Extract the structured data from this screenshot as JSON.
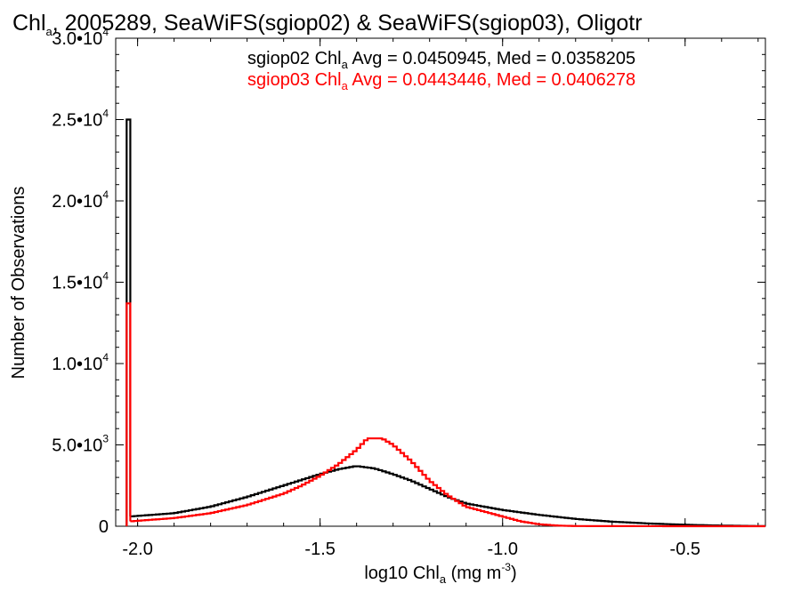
{
  "title": {
    "pre": "Chl",
    "sub": "a",
    "post": ", 2005289, SeaWiFS(sgiop02) & SeaWiFS(sgiop03), Oligotr"
  },
  "legend": [
    {
      "pre": "sgiop02 Chl",
      "sub": "a",
      "post": " Avg = 0.0450945, Med = 0.0358205",
      "color": "#000000"
    },
    {
      "pre": "sgiop03 Chl",
      "sub": "a",
      "post": " Avg = 0.0443446, Med = 0.0406278",
      "color": "#ff0000"
    }
  ],
  "axes": {
    "xlabel": {
      "pre": "log10 Chl",
      "sub": "a",
      "post": " (mg m",
      "sup": "-3",
      "end": ")"
    },
    "ylabel": "Number of Observations",
    "xticks": [
      "-2.0",
      "-1.5",
      "-1.0",
      "-0.5"
    ],
    "yticks": [
      {
        "mant": "0",
        "exp": ""
      },
      {
        "mant": "5.0•10",
        "exp": "3"
      },
      {
        "mant": "1.0•10",
        "exp": "4"
      },
      {
        "mant": "1.5•10",
        "exp": "4"
      },
      {
        "mant": "2.0•10",
        "exp": "4"
      },
      {
        "mant": "2.5•10",
        "exp": "4"
      },
      {
        "mant": "3.0•10",
        "exp": "4"
      }
    ]
  },
  "chart_data": {
    "type": "line",
    "style": "step histogram",
    "xlim": [
      -2.06,
      -0.28
    ],
    "ylim": [
      0,
      30000
    ],
    "xticks": [
      -2.0,
      -1.5,
      -1.0,
      -0.5
    ],
    "yticks": [
      0,
      5000,
      10000,
      15000,
      20000,
      25000,
      30000
    ],
    "series": [
      {
        "name": "sgiop02",
        "color": "#000000",
        "points": [
          [
            -2.03,
            0
          ],
          [
            -2.03,
            25000
          ],
          [
            -2.02,
            25000
          ],
          [
            -2.02,
            600
          ],
          [
            -1.9,
            800
          ],
          [
            -1.8,
            1200
          ],
          [
            -1.7,
            1800
          ],
          [
            -1.6,
            2500
          ],
          [
            -1.5,
            3200
          ],
          [
            -1.45,
            3500
          ],
          [
            -1.4,
            3700
          ],
          [
            -1.35,
            3550
          ],
          [
            -1.3,
            3200
          ],
          [
            -1.25,
            2800
          ],
          [
            -1.2,
            2300
          ],
          [
            -1.15,
            1800
          ],
          [
            -1.1,
            1400
          ],
          [
            -1.0,
            1000
          ],
          [
            -0.9,
            700
          ],
          [
            -0.8,
            450
          ],
          [
            -0.7,
            280
          ],
          [
            -0.6,
            170
          ],
          [
            -0.5,
            90
          ],
          [
            -0.4,
            40
          ],
          [
            -0.3,
            10
          ]
        ]
      },
      {
        "name": "sgiop03",
        "color": "#ff0000",
        "points": [
          [
            -2.03,
            0
          ],
          [
            -2.03,
            13700
          ],
          [
            -2.02,
            13700
          ],
          [
            -2.02,
            300
          ],
          [
            -1.9,
            500
          ],
          [
            -1.8,
            800
          ],
          [
            -1.7,
            1300
          ],
          [
            -1.6,
            2000
          ],
          [
            -1.55,
            2500
          ],
          [
            -1.5,
            3100
          ],
          [
            -1.45,
            3800
          ],
          [
            -1.4,
            4700
          ],
          [
            -1.37,
            5400
          ],
          [
            -1.33,
            5400
          ],
          [
            -1.3,
            5000
          ],
          [
            -1.25,
            4000
          ],
          [
            -1.2,
            2800
          ],
          [
            -1.15,
            1900
          ],
          [
            -1.1,
            1200
          ],
          [
            -1.05,
            900
          ],
          [
            -1.0,
            600
          ],
          [
            -0.95,
            300
          ],
          [
            -0.9,
            120
          ],
          [
            -0.85,
            40
          ],
          [
            -0.8,
            10
          ],
          [
            -0.5,
            0
          ]
        ]
      }
    ]
  }
}
